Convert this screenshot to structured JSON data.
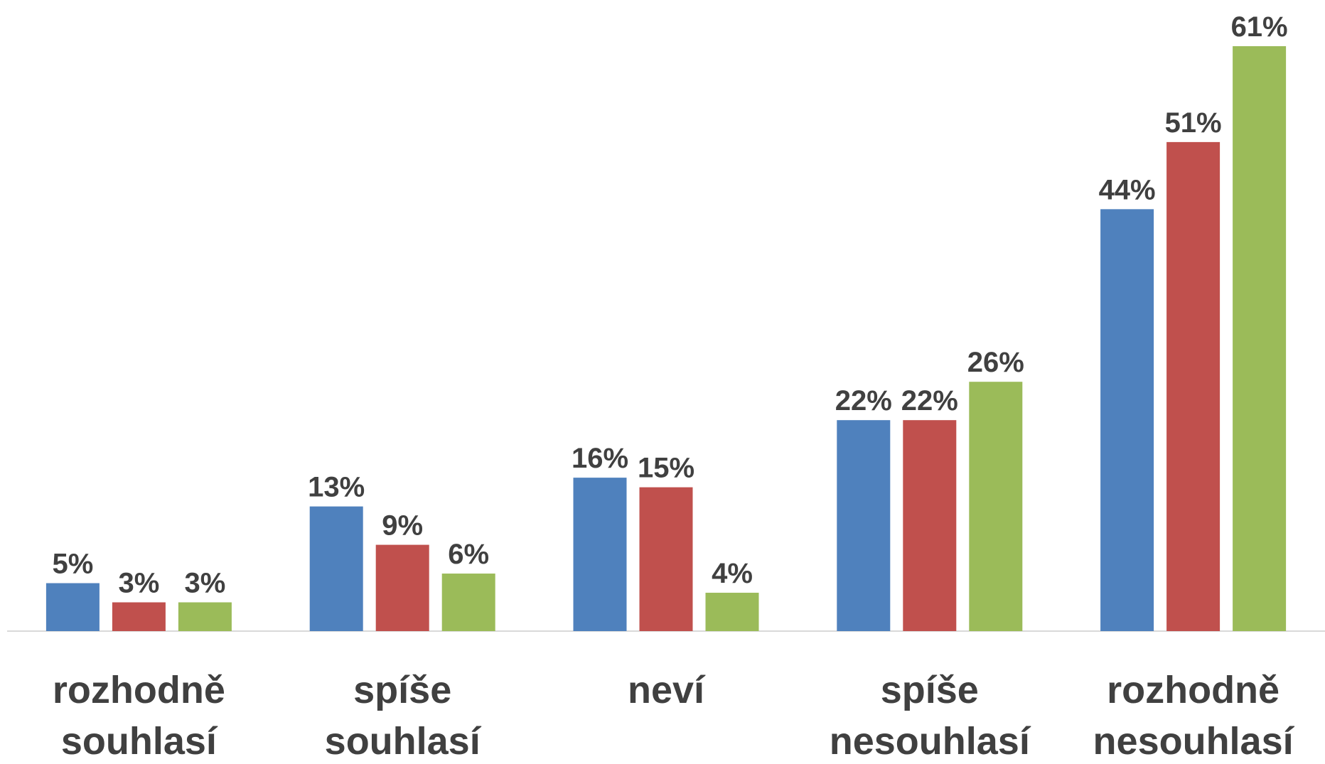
{
  "chart_data": {
    "type": "bar",
    "categories": [
      "rozhodně souhlasí",
      "spíše souhlasí",
      "neví",
      "spíše nesouhlasí",
      "rozhodně nesouhlasí"
    ],
    "series": [
      {
        "color": "#4f81bd",
        "values": [
          5,
          13,
          16,
          22,
          44
        ],
        "value_labels": [
          "5%",
          "13%",
          "16%",
          "22%",
          "44%"
        ]
      },
      {
        "color": "#c0504d",
        "values": [
          3,
          9,
          15,
          22,
          51
        ],
        "value_labels": [
          "3%",
          "9%",
          "15%",
          "22%",
          "51%"
        ]
      },
      {
        "color": "#9bbb59",
        "values": [
          3,
          6,
          4,
          26,
          61
        ],
        "value_labels": [
          "3%",
          "6%",
          "4%",
          "26%",
          "61%"
        ]
      }
    ],
    "ylim": [
      0,
      65
    ]
  }
}
